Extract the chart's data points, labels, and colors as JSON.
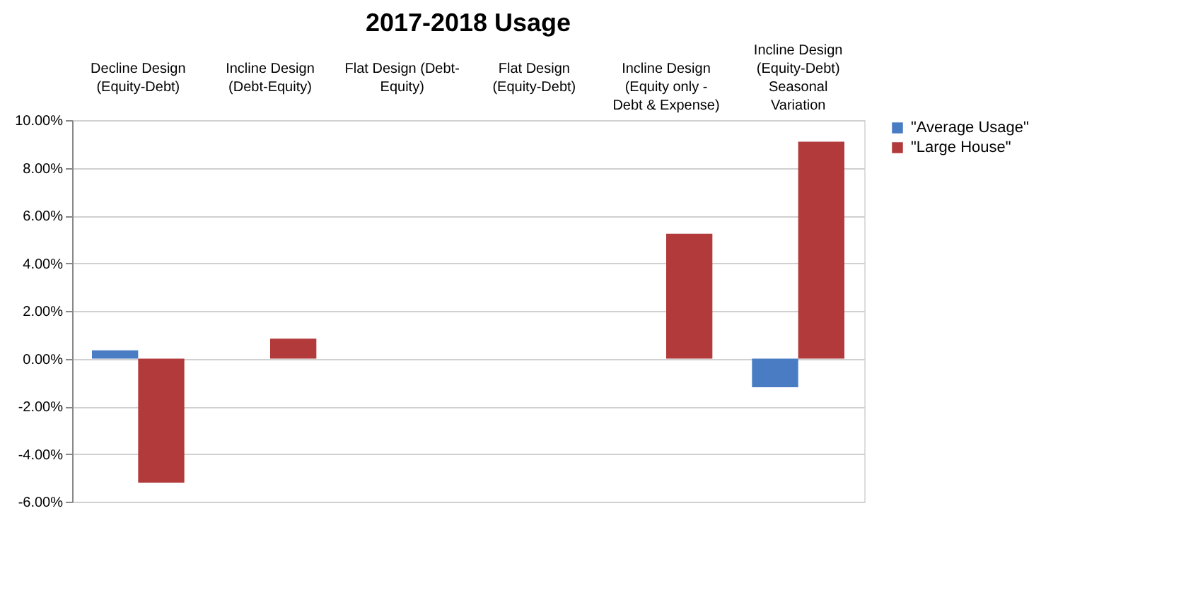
{
  "chart_data": {
    "type": "bar",
    "title": "2017-2018 Usage",
    "categories": [
      "Decline Design\n(Equity-Debt)",
      "Incline Design\n(Debt-Equity)",
      "Flat Design (Debt-\nEquity)",
      "Flat Design\n(Equity-Debt)",
      "Incline Design\n(Equity only -\nDebt & Expense)",
      "Incline Design\n(Equity-Debt)\nSeasonal\nVariation"
    ],
    "series": [
      {
        "name": "\"Average Usage\"",
        "color": "#4a7cc4",
        "values": [
          0.35,
          0,
          0,
          0,
          0,
          -1.2
        ]
      },
      {
        "name": "\"Large House\"",
        "color": "#b23a3a",
        "values": [
          -5.2,
          0.84,
          0,
          0,
          5.24,
          9.1
        ]
      }
    ],
    "ylim": [
      -6,
      10
    ],
    "yticks": [
      {
        "value": -6,
        "label": "-6.00%"
      },
      {
        "value": -4,
        "label": "-4.00%"
      },
      {
        "value": -2,
        "label": "-2.00%"
      },
      {
        "value": 0,
        "label": "0.00%"
      },
      {
        "value": 2,
        "label": "2.00%"
      },
      {
        "value": 4,
        "label": "4.00%"
      },
      {
        "value": 6,
        "label": "6.00%"
      },
      {
        "value": 8,
        "label": "8.00%"
      },
      {
        "value": 10,
        "label": "10.00%"
      }
    ],
    "grid": "y",
    "legend": "right"
  }
}
